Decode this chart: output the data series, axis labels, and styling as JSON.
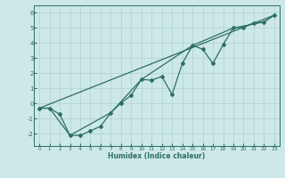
{
  "title": "",
  "xlabel": "Humidex (Indice chaleur)",
  "xlim": [
    -0.5,
    23.5
  ],
  "ylim": [
    -2.8,
    6.5
  ],
  "yticks": [
    -2,
    -1,
    0,
    1,
    2,
    3,
    4,
    5,
    6
  ],
  "xticks": [
    0,
    1,
    2,
    3,
    4,
    5,
    6,
    7,
    8,
    9,
    10,
    11,
    12,
    13,
    14,
    15,
    16,
    17,
    18,
    19,
    20,
    21,
    22,
    23
  ],
  "bg_color": "#cde8e8",
  "line_color": "#2d6e65",
  "grid_color": "#b0d0d0",
  "line1_x": [
    0,
    1,
    2,
    3,
    4,
    5,
    6,
    7,
    8,
    9,
    10,
    11,
    12,
    13,
    14,
    15,
    16,
    17,
    18,
    19,
    20,
    21,
    22,
    23
  ],
  "line1_y": [
    -0.3,
    -0.3,
    -0.7,
    -2.1,
    -2.1,
    -1.8,
    -1.5,
    -0.6,
    0.05,
    0.55,
    1.6,
    1.55,
    1.8,
    0.6,
    2.65,
    3.85,
    3.6,
    2.65,
    3.9,
    5.0,
    5.05,
    5.35,
    5.4,
    5.85
  ],
  "line2_x": [
    0,
    23
  ],
  "line2_y": [
    -0.3,
    5.85
  ],
  "line3_x": [
    0,
    1,
    3,
    7,
    10,
    15,
    19,
    22,
    23
  ],
  "line3_y": [
    -0.3,
    -0.3,
    -2.1,
    -0.6,
    1.6,
    3.85,
    5.0,
    5.4,
    5.85
  ]
}
